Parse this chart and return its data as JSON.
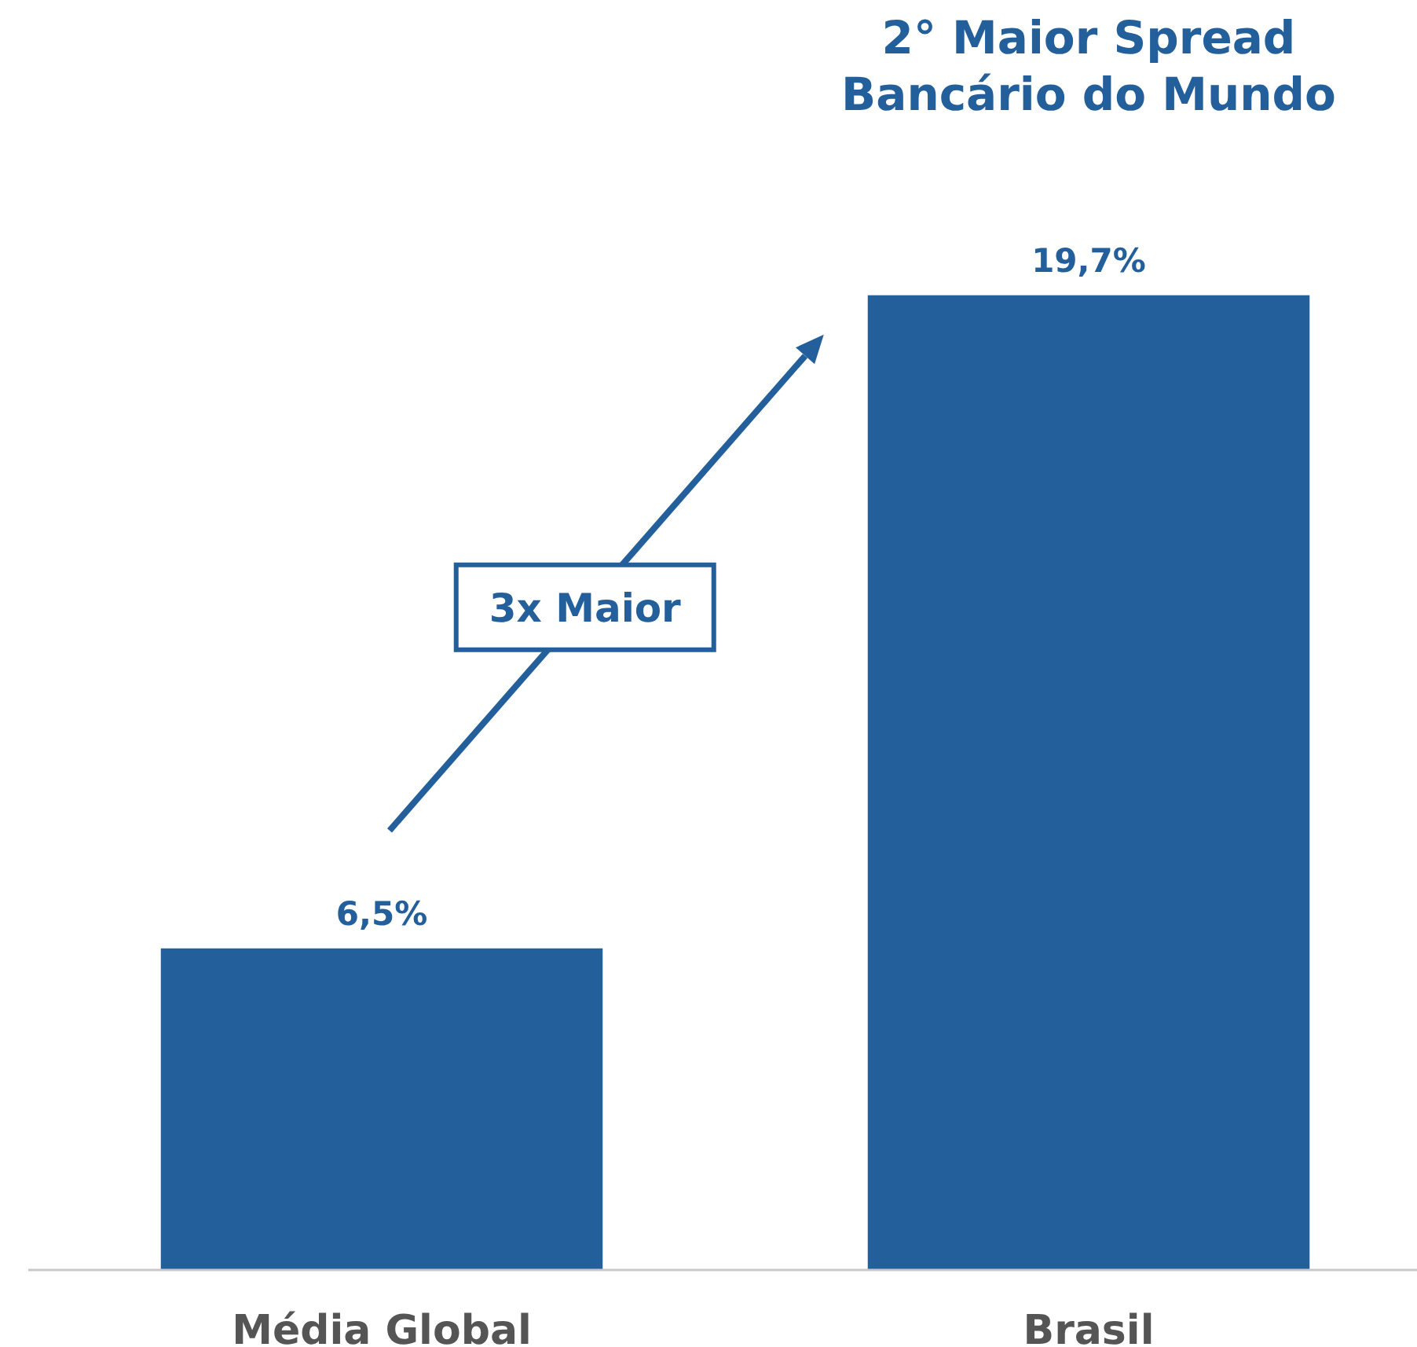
{
  "chart_data": {
    "type": "bar",
    "title": "2° Maior Spread Bancário do Mundo",
    "categories": [
      "Média Global",
      "Brasil"
    ],
    "values": [
      6.5,
      19.7
    ],
    "value_labels": [
      "6,5%",
      "19,7%"
    ],
    "color": "#235f9a",
    "annotations": [
      "3x Maior"
    ]
  }
}
